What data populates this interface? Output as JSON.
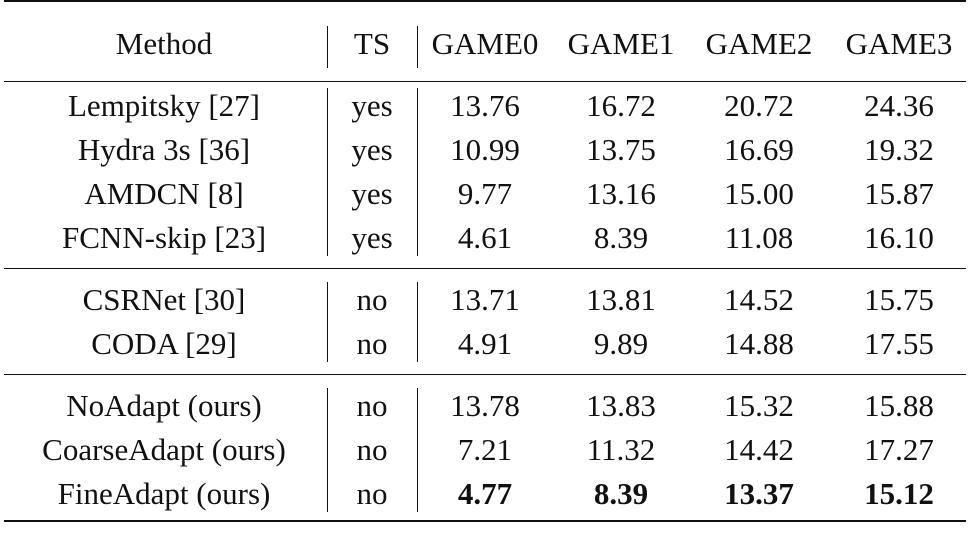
{
  "table": {
    "headers": [
      "Method",
      "TS",
      "GAME0",
      "GAME1",
      "GAME2",
      "GAME3"
    ],
    "groups": [
      {
        "rows": [
          {
            "method": "Lempitsky [27]",
            "ts": "yes",
            "values": [
              "13.76",
              "16.72",
              "20.72",
              "24.36"
            ]
          },
          {
            "method": "Hydra 3s [36]",
            "ts": "yes",
            "values": [
              "10.99",
              "13.75",
              "16.69",
              "19.32"
            ]
          },
          {
            "method": "AMDCN [8]",
            "ts": "yes",
            "values": [
              "9.77",
              "13.16",
              "15.00",
              "15.87"
            ]
          },
          {
            "method": "FCNN-skip [23]",
            "ts": "yes",
            "values": [
              "4.61",
              "8.39",
              "11.08",
              "16.10"
            ]
          }
        ]
      },
      {
        "rows": [
          {
            "method": "CSRNet [30]",
            "ts": "no",
            "values": [
              "13.71",
              "13.81",
              "14.52",
              "15.75"
            ]
          },
          {
            "method": "CODA [29]",
            "ts": "no",
            "values": [
              "4.91",
              "9.89",
              "14.88",
              "17.55"
            ]
          }
        ]
      },
      {
        "rows": [
          {
            "method": "NoAdapt (ours)",
            "ts": "no",
            "values": [
              "13.78",
              "13.83",
              "15.32",
              "15.88"
            ]
          },
          {
            "method": "CoarseAdapt (ours)",
            "ts": "no",
            "values": [
              "7.21",
              "11.32",
              "14.42",
              "17.27"
            ]
          },
          {
            "method": "FineAdapt (ours)",
            "ts": "no",
            "values": [
              "4.77",
              "8.39",
              "13.37",
              "15.12"
            ],
            "bold_values": true
          }
        ]
      }
    ]
  }
}
